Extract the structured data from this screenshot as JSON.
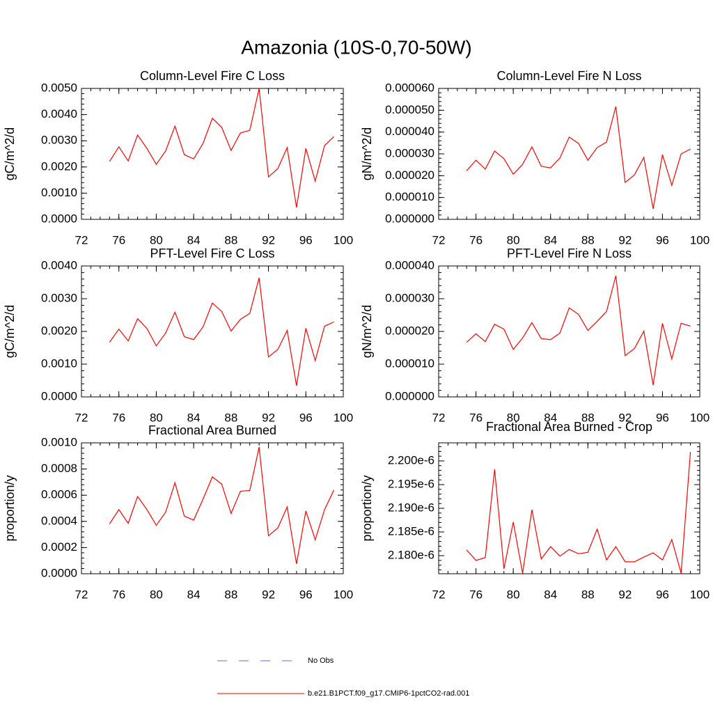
{
  "title": "Amazonia (10S-0,70-50W)",
  "legend": [
    {
      "label": "No Obs",
      "color": "#5a6fd6",
      "dash": true
    },
    {
      "label": "b.e21.B1PCT.f09_g17.CMIP6-1pctCO2-rad.001",
      "color": "#ff0000",
      "dash": false
    }
  ],
  "chart_data": [
    {
      "type": "line",
      "title": "Column-Level Fire C Loss",
      "y_label": "gC/m^2/d",
      "x": [
        75,
        76,
        77,
        78,
        79,
        80,
        81,
        82,
        83,
        84,
        85,
        86,
        87,
        88,
        89,
        90,
        91,
        92,
        93,
        94,
        95,
        96,
        97,
        98,
        99
      ],
      "series": [
        {
          "color": "#ff0000",
          "values": [
            0.00221,
            0.00277,
            0.00223,
            0.00322,
            0.00271,
            0.0021,
            0.00261,
            0.00356,
            0.00247,
            0.00231,
            0.0029,
            0.00386,
            0.00351,
            0.00263,
            0.0033,
            0.0034,
            0.005,
            0.00162,
            0.00194,
            0.00274,
            0.00045,
            0.00271,
            0.00146,
            0.00282,
            0.00316
          ]
        }
      ],
      "xlim": [
        72,
        100
      ],
      "xticks": [
        72,
        76,
        80,
        84,
        88,
        92,
        96,
        100
      ],
      "ylim": [
        0,
        0.005
      ],
      "yticks": [
        {
          "value": 0,
          "label": "0.0000"
        },
        {
          "value": 0.001,
          "label": "0.0010"
        },
        {
          "value": 0.002,
          "label": "0.0020"
        },
        {
          "value": 0.003,
          "label": "0.0030"
        },
        {
          "value": 0.004,
          "label": "0.0040"
        },
        {
          "value": 0.005,
          "label": "0.0050"
        }
      ]
    },
    {
      "type": "line",
      "title": "Column-Level Fire N Loss",
      "y_label": "gN/m^2/d",
      "x": [
        75,
        76,
        77,
        78,
        79,
        80,
        81,
        82,
        83,
        84,
        85,
        86,
        87,
        88,
        89,
        90,
        91,
        92,
        93,
        94,
        95,
        96,
        97,
        98,
        99
      ],
      "series": [
        {
          "color": "#ff0000",
          "values": [
            2.23e-05,
            2.71e-05,
            2.3e-05,
            3.13e-05,
            2.78e-05,
            2.07e-05,
            2.52e-05,
            3.32e-05,
            2.43e-05,
            2.36e-05,
            2.81e-05,
            3.77e-05,
            3.48e-05,
            2.71e-05,
            3.29e-05,
            3.54e-05,
            5.17e-05,
            1.69e-05,
            2.04e-05,
            2.84e-05,
            4.8e-06,
            2.97e-05,
            1.56e-05,
            3e-05,
            3.22e-05
          ]
        }
      ],
      "xlim": [
        72,
        100
      ],
      "xticks": [
        72,
        76,
        80,
        84,
        88,
        92,
        96,
        100
      ],
      "ylim": [
        0,
        6e-05
      ],
      "yticks": [
        {
          "value": 0,
          "label": "0.000000"
        },
        {
          "value": 1e-05,
          "label": "0.000010"
        },
        {
          "value": 2e-05,
          "label": "0.000020"
        },
        {
          "value": 3e-05,
          "label": "0.000030"
        },
        {
          "value": 4e-05,
          "label": "0.000040"
        },
        {
          "value": 5e-05,
          "label": "0.000050"
        },
        {
          "value": 6e-05,
          "label": "0.000060"
        }
      ]
    },
    {
      "type": "line",
      "title": "PFT-Level Fire C Loss",
      "y_label": "gC/m^2/d",
      "x": [
        75,
        76,
        77,
        78,
        79,
        80,
        81,
        82,
        83,
        84,
        85,
        86,
        87,
        88,
        89,
        90,
        91,
        92,
        93,
        94,
        95,
        96,
        97,
        98,
        99
      ],
      "series": [
        {
          "color": "#ff0000",
          "values": [
            0.00167,
            0.00207,
            0.00171,
            0.00239,
            0.00209,
            0.00156,
            0.00195,
            0.00259,
            0.00184,
            0.00175,
            0.00214,
            0.00287,
            0.00261,
            0.00201,
            0.00237,
            0.00255,
            0.00364,
            0.00122,
            0.00145,
            0.00203,
            0.00034,
            0.0021,
            0.00111,
            0.00216,
            0.00229
          ]
        }
      ],
      "xlim": [
        72,
        100
      ],
      "xticks": [
        72,
        76,
        80,
        84,
        88,
        92,
        96,
        100
      ],
      "ylim": [
        0,
        0.004
      ],
      "yticks": [
        {
          "value": 0,
          "label": "0.0000"
        },
        {
          "value": 0.001,
          "label": "0.0010"
        },
        {
          "value": 0.002,
          "label": "0.0020"
        },
        {
          "value": 0.003,
          "label": "0.0030"
        },
        {
          "value": 0.004,
          "label": "0.0040"
        }
      ]
    },
    {
      "type": "line",
      "title": "PFT-Level Fire N Loss",
      "y_label": "gN/m^2/d",
      "x": [
        75,
        76,
        77,
        78,
        79,
        80,
        81,
        82,
        83,
        84,
        85,
        86,
        87,
        88,
        89,
        90,
        91,
        92,
        93,
        94,
        95,
        96,
        97,
        98,
        99
      ],
      "series": [
        {
          "color": "#ff0000",
          "values": [
            1.67e-05,
            1.93e-05,
            1.69e-05,
            2.22e-05,
            2.07e-05,
            1.45e-05,
            1.8e-05,
            2.27e-05,
            1.78e-05,
            1.75e-05,
            1.95e-05,
            2.72e-05,
            2.52e-05,
            2.03e-05,
            2.31e-05,
            2.61e-05,
            3.7e-05,
            1.26e-05,
            1.48e-05,
            2.01e-05,
            3.6e-06,
            2.25e-05,
            1.16e-05,
            2.25e-05,
            2.16e-05
          ]
        }
      ],
      "xlim": [
        72,
        100
      ],
      "xticks": [
        72,
        76,
        80,
        84,
        88,
        92,
        96,
        100
      ],
      "ylim": [
        0,
        4e-05
      ],
      "yticks": [
        {
          "value": 0,
          "label": "0.000000"
        },
        {
          "value": 1e-05,
          "label": "0.000010"
        },
        {
          "value": 2e-05,
          "label": "0.000020"
        },
        {
          "value": 3e-05,
          "label": "0.000030"
        },
        {
          "value": 4e-05,
          "label": "0.000040"
        }
      ]
    },
    {
      "type": "line",
      "title": "Fractional Area Burned",
      "y_label": "proportion/y",
      "x": [
        75,
        76,
        77,
        78,
        79,
        80,
        81,
        82,
        83,
        84,
        85,
        86,
        87,
        88,
        89,
        90,
        91,
        92,
        93,
        94,
        95,
        96,
        97,
        98,
        99
      ],
      "series": [
        {
          "color": "#ff0000",
          "values": [
            0.00038,
            0.00049,
            0.000385,
            0.00059,
            0.00049,
            0.00037,
            0.00047,
            0.000695,
            0.00044,
            0.00041,
            0.00057,
            0.00074,
            0.000685,
            0.00046,
            0.00063,
            0.000636,
            0.000968,
            0.00029,
            0.00035,
            0.00051,
            7.5e-05,
            0.00048,
            0.00026,
            0.00049,
            0.00064
          ]
        }
      ],
      "xlim": [
        72,
        100
      ],
      "xticks": [
        72,
        76,
        80,
        84,
        88,
        92,
        96,
        100
      ],
      "ylim": [
        0,
        0.001
      ],
      "yticks": [
        {
          "value": 0,
          "label": "0.0000"
        },
        {
          "value": 0.0002,
          "label": "0.0002"
        },
        {
          "value": 0.0004,
          "label": "0.0004"
        },
        {
          "value": 0.0006,
          "label": "0.0006"
        },
        {
          "value": 0.0008,
          "label": "0.0008"
        },
        {
          "value": 0.001,
          "label": "0.0010"
        }
      ]
    },
    {
      "type": "line",
      "title": "Fractional Area Burned - Crop",
      "y_label": "proportion/y",
      "x": [
        75,
        76,
        77,
        78,
        79,
        80,
        81,
        82,
        83,
        84,
        85,
        86,
        87,
        88,
        89,
        90,
        91,
        92,
        93,
        94,
        95,
        96,
        97,
        98,
        99
      ],
      "series": [
        {
          "color": "#ff0000",
          "values": [
            2.1812e-06,
            2.179e-06,
            2.1796e-06,
            2.1982e-06,
            2.1772e-06,
            2.1871e-06,
            2.1763e-06,
            2.1897e-06,
            2.1793e-06,
            2.1819e-06,
            2.1799e-06,
            2.1813e-06,
            2.1804e-06,
            2.1807e-06,
            2.1856e-06,
            2.1791e-06,
            2.1819e-06,
            2.1787e-06,
            2.1787e-06,
            2.1797e-06,
            2.1806e-06,
            2.1791e-06,
            2.1834e-06,
            2.1763e-06,
            2.2019e-06
          ]
        }
      ],
      "xlim": [
        72,
        100
      ],
      "xticks": [
        72,
        76,
        80,
        84,
        88,
        92,
        96,
        100
      ],
      "ylim": [
        2.17618e-06,
        2.20382e-06
      ],
      "yticks": [
        {
          "value": 2.18e-06,
          "label": "2.180e-6"
        },
        {
          "value": 2.185e-06,
          "label": "2.185e-6"
        },
        {
          "value": 2.19e-06,
          "label": "2.190e-6"
        },
        {
          "value": 2.195e-06,
          "label": "2.195e-6"
        },
        {
          "value": 2.2e-06,
          "label": "2.200e-6"
        }
      ]
    }
  ]
}
